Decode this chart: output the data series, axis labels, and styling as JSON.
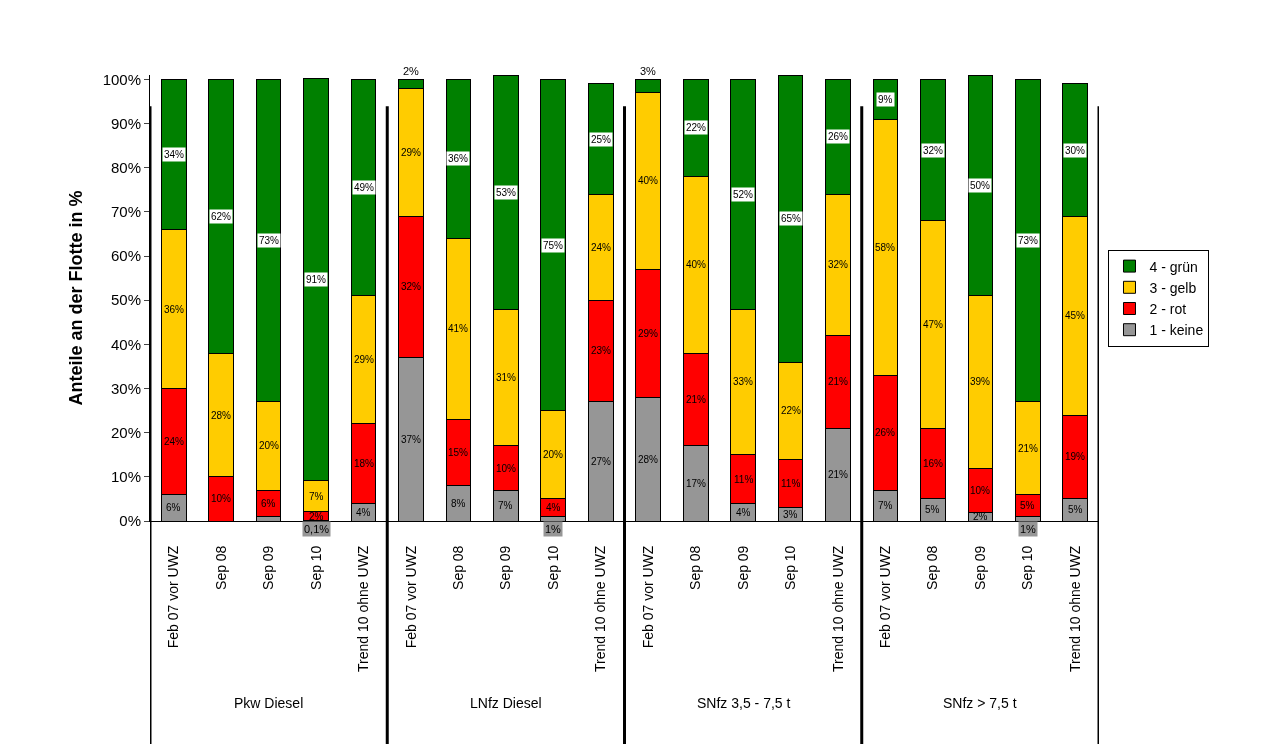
{
  "chart_data": {
    "type": "bar",
    "stacked": true,
    "ylabel": "Anteile an der Flotte in %",
    "categories": [
      "Feb 07 vor UWZ",
      "Sep 08",
      "Sep 09",
      "Sep 10",
      "Trend 10 ohne UWZ",
      "Feb 07 vor UWZ",
      "Sep 08",
      "Sep 09",
      "Sep 10",
      "Trend 10 ohne UWZ",
      "Feb 07 vor UWZ",
      "Sep 08",
      "Sep 09",
      "Sep 10",
      "Trend 10 ohne UWZ",
      "Feb 07 vor UWZ",
      "Sep 08",
      "Sep 09",
      "Sep 10",
      "Trend 10 ohne UWZ"
    ],
    "annotations": [
      "Pkw Diesel",
      "LNfz Diesel",
      "SNfz 3,5 - 7,5 t",
      "SNfz > 7,5 t"
    ],
    "series": [
      {
        "name": "1 - keine",
        "color": "#969696",
        "values": [
          6,
          null,
          1,
          0.1,
          4,
          37,
          8,
          7,
          1,
          27,
          28,
          17,
          4,
          3,
          21,
          7,
          5,
          2,
          1,
          5
        ],
        "value_labels": [
          "6%",
          null,
          null,
          "0,1%",
          "4%",
          "37%",
          "8%",
          "7%",
          "1%",
          "27%",
          "28%",
          "17%",
          "4%",
          "3%",
          "21%",
          "7%",
          "5%",
          "2%",
          "1%",
          "5%"
        ]
      },
      {
        "name": "2 - rot",
        "color": "#ff0000",
        "values": [
          24,
          10,
          6,
          2,
          18,
          32,
          15,
          10,
          4,
          23,
          29,
          21,
          11,
          11,
          21,
          26,
          16,
          10,
          5,
          19
        ],
        "value_labels": [
          "24%",
          "10%",
          "6%",
          "2%",
          "18%",
          "32%",
          "15%",
          "10%",
          "4%",
          "23%",
          "29%",
          "21%",
          "11%",
          "11%",
          "21%",
          "26%",
          "16%",
          "10%",
          "5%",
          "19%"
        ]
      },
      {
        "name": "3 - gelb",
        "color": "#ffcc00",
        "values": [
          36,
          28,
          20,
          7,
          29,
          29,
          41,
          31,
          20,
          24,
          40,
          40,
          33,
          22,
          32,
          58,
          47,
          39,
          21,
          45
        ],
        "value_labels": [
          "36%",
          "28%",
          "20%",
          "7%",
          "29%",
          "29%",
          "41%",
          "31%",
          "20%",
          "24%",
          "40%",
          "40%",
          "33%",
          "22%",
          "32%",
          "58%",
          "47%",
          "39%",
          "21%",
          "45%"
        ]
      },
      {
        "name": "4 - grün",
        "color": "#008000",
        "values": [
          34,
          62,
          73,
          91,
          49,
          2,
          36,
          53,
          75,
          25,
          3,
          22,
          52,
          65,
          26,
          9,
          32,
          50,
          73,
          30
        ],
        "value_labels": [
          "34%",
          "62%",
          "73%",
          "91%",
          "49%",
          "2%",
          "36%",
          "53%",
          "75%",
          "25%",
          "3%",
          "22%",
          "52%",
          "65%",
          "26%",
          "9%",
          "32%",
          "50%",
          "73%",
          "30%"
        ]
      }
    ],
    "ylim": [
      0,
      101
    ],
    "yticks": [
      {
        "value": 0,
        "label": "0%"
      },
      {
        "value": 10,
        "label": "10%"
      },
      {
        "value": 20,
        "label": "20%"
      },
      {
        "value": 30,
        "label": "30%"
      },
      {
        "value": 40,
        "label": "40%"
      },
      {
        "value": 50,
        "label": "50%"
      },
      {
        "value": 60,
        "label": "60%"
      },
      {
        "value": 70,
        "label": "70%"
      },
      {
        "value": 80,
        "label": "80%"
      },
      {
        "value": 90,
        "label": "90%"
      },
      {
        "value": 100,
        "label": "100%"
      }
    ],
    "legend": "right"
  }
}
